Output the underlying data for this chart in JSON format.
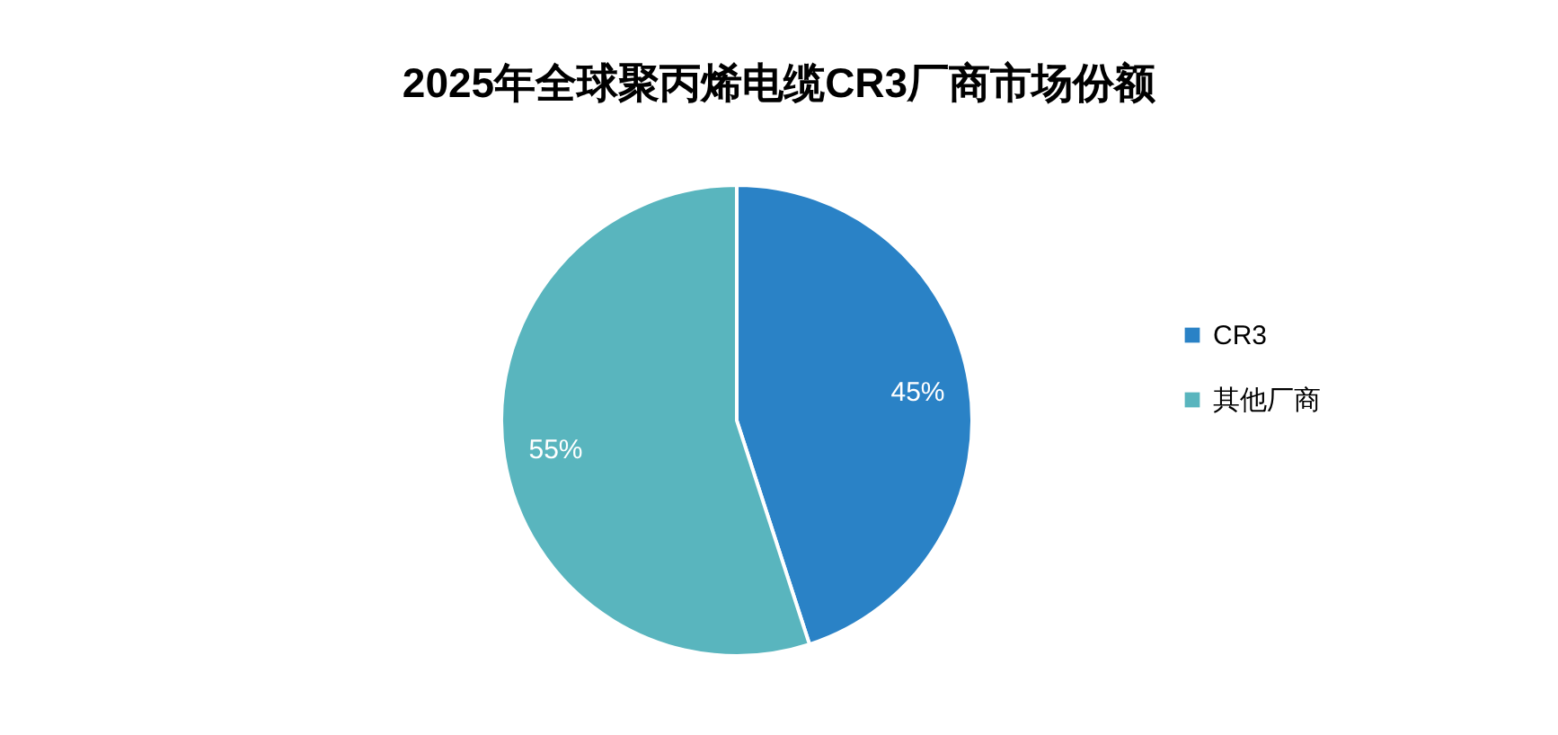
{
  "chart_data": {
    "type": "pie",
    "title": "2025年全球聚丙烯电缆CR3厂商市场份额",
    "categories": [
      "CR3",
      "其他厂商"
    ],
    "values": [
      45,
      55
    ],
    "colors": [
      "#2a82c6",
      "#59b5be"
    ],
    "value_labels": [
      "45%",
      "55%"
    ],
    "legend": "right"
  }
}
